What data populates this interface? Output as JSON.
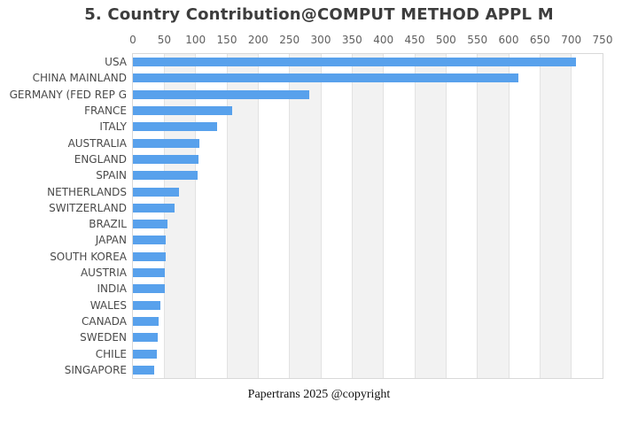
{
  "title": "5. Country Contribution@COMPUT METHOD APPL M",
  "footer": "Papertrans 2025 @copyright",
  "chart_data": {
    "type": "bar",
    "orientation": "horizontal",
    "title": "5. Country Contribution@COMPUT METHOD APPL M",
    "categories": [
      "USA",
      "CHINA MAINLAND",
      "GERMANY (FED REP G",
      "FRANCE",
      "ITALY",
      "AUSTRALIA",
      "ENGLAND",
      "SPAIN",
      "NETHERLANDS",
      "SWITZERLAND",
      "BRAZIL",
      "JAPAN",
      "SOUTH KOREA",
      "AUSTRIA",
      "INDIA",
      "WALES",
      "CANADA",
      "SWEDEN",
      "CHILE",
      "SINGAPORE"
    ],
    "values": [
      707,
      615,
      281,
      158,
      134,
      106,
      105,
      104,
      74,
      66,
      55,
      53,
      53,
      51,
      51,
      44,
      41,
      39,
      38,
      34
    ],
    "xlabel": "",
    "ylabel": "",
    "xlim": [
      0,
      750
    ],
    "xticks": [
      0,
      50,
      100,
      150,
      200,
      250,
      300,
      350,
      400,
      450,
      500,
      550,
      600,
      650,
      700,
      750
    ],
    "axis_position": "top",
    "grid": true,
    "split_area": true,
    "legend": null,
    "colors": {
      "bar": "#58a1ec",
      "stripe": "#f2f2f2",
      "gridline": "#e2e2e2",
      "plot_border": "#d9d9d9",
      "title_text": "#3d3d3d",
      "tick_text": "#606060",
      "label_text": "#4a4a4a"
    }
  }
}
